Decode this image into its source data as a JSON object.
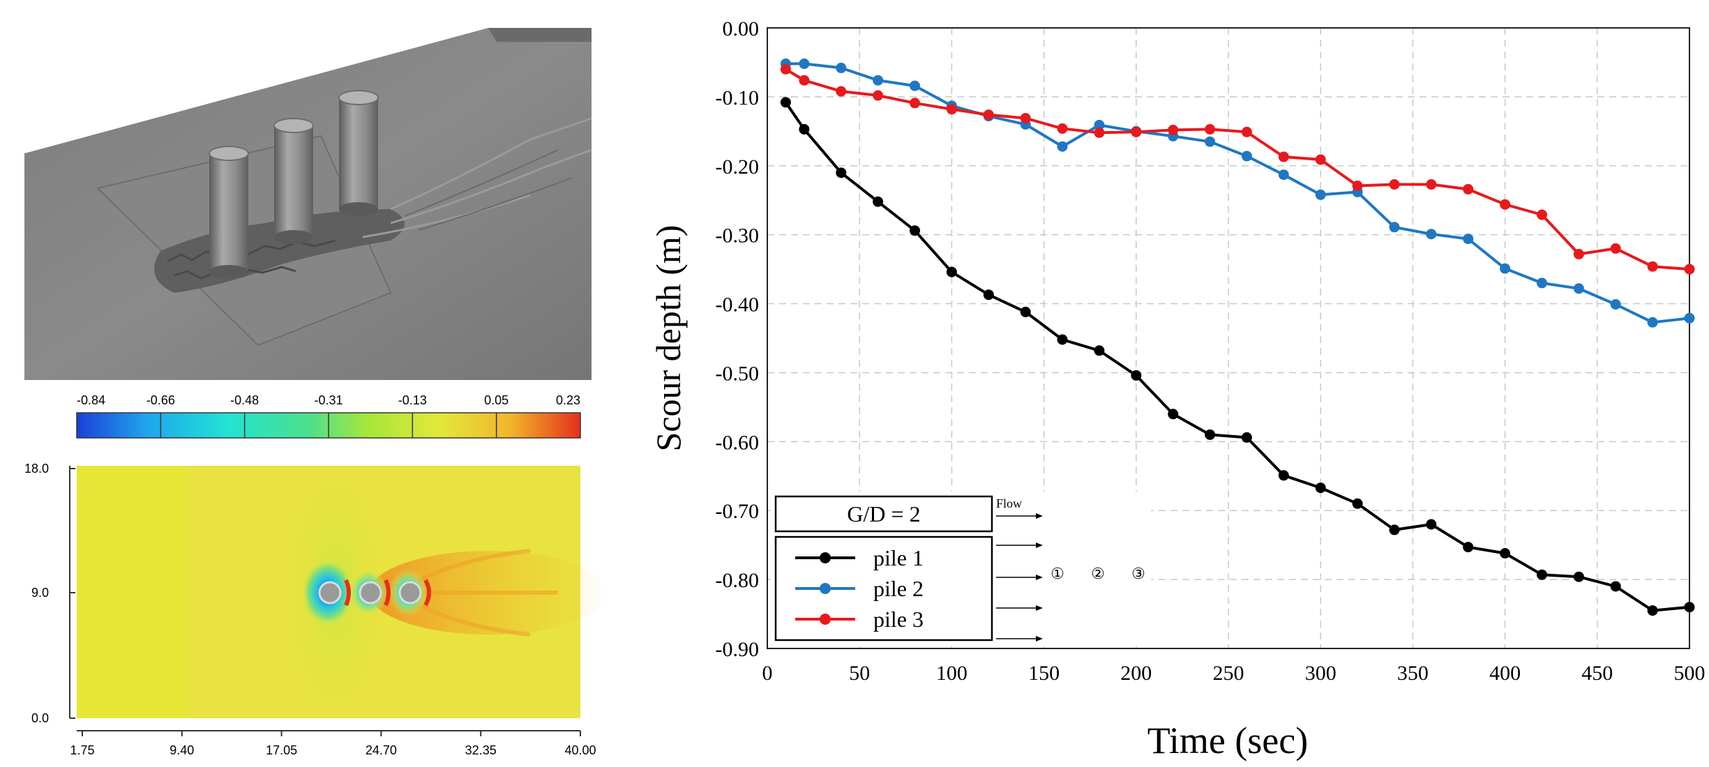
{
  "colorbar": {
    "ticks": [
      "-0.84",
      "-0.66",
      "-0.48",
      "-0.31",
      "-0.13",
      "0.05",
      "0.23"
    ]
  },
  "contour_plot": {
    "y_ticks": [
      "18.0",
      "9.0",
      "0.0"
    ],
    "x_ticks": [
      "1.75",
      "9.40",
      "17.05",
      "24.70",
      "32.35",
      "40.00"
    ]
  },
  "inset": {
    "title": "G/D = 2",
    "flow_label": "Flow",
    "pile_markers": [
      "①",
      "②",
      "③"
    ]
  },
  "chart_data": {
    "type": "line",
    "title": "",
    "xlabel": "Time (sec)",
    "ylabel": "Scour depth (m)",
    "xlim": [
      0,
      500
    ],
    "ylim": [
      -0.9,
      0.0
    ],
    "x_ticks": [
      "0",
      "50",
      "100",
      "150",
      "200",
      "250",
      "300",
      "350",
      "400",
      "450",
      "500"
    ],
    "y_ticks": [
      "0.00",
      "-0.10",
      "-0.20",
      "-0.30",
      "-0.40",
      "-0.50",
      "-0.60",
      "-0.70",
      "-0.80",
      "-0.90"
    ],
    "grid": true,
    "legend_position": "bottom-left",
    "x": [
      10,
      20,
      40,
      60,
      80,
      100,
      120,
      140,
      160,
      180,
      200,
      220,
      240,
      260,
      280,
      300,
      320,
      340,
      360,
      380,
      400,
      420,
      440,
      460,
      480,
      500
    ],
    "series": [
      {
        "name": "pile 1",
        "color": "#000000",
        "values": [
          -0.108,
          -0.147,
          -0.21,
          -0.252,
          -0.294,
          -0.354,
          -0.387,
          -0.412,
          -0.452,
          -0.468,
          -0.504,
          -0.56,
          -0.59,
          -0.594,
          -0.649,
          -0.667,
          -0.69,
          -0.728,
          -0.72,
          -0.753,
          -0.762,
          -0.793,
          -0.796,
          -0.81,
          -0.845,
          -0.84
        ]
      },
      {
        "name": "pile 2",
        "color": "#1f77c4",
        "values": [
          -0.052,
          -0.052,
          -0.058,
          -0.076,
          -0.084,
          -0.113,
          -0.128,
          -0.14,
          -0.172,
          -0.141,
          -0.15,
          -0.157,
          -0.165,
          -0.186,
          -0.213,
          -0.242,
          -0.238,
          -0.289,
          -0.299,
          -0.306,
          -0.349,
          -0.37,
          -0.378,
          -0.401,
          -0.427,
          -0.421
        ]
      },
      {
        "name": "pile 3",
        "color": "#e8191c",
        "values": [
          -0.06,
          -0.076,
          -0.092,
          -0.098,
          -0.109,
          -0.118,
          -0.126,
          -0.131,
          -0.146,
          -0.152,
          -0.151,
          -0.148,
          -0.147,
          -0.151,
          -0.187,
          -0.191,
          -0.229,
          -0.227,
          -0.227,
          -0.234,
          -0.256,
          -0.271,
          -0.328,
          -0.32,
          -0.346,
          -0.35
        ]
      }
    ]
  }
}
